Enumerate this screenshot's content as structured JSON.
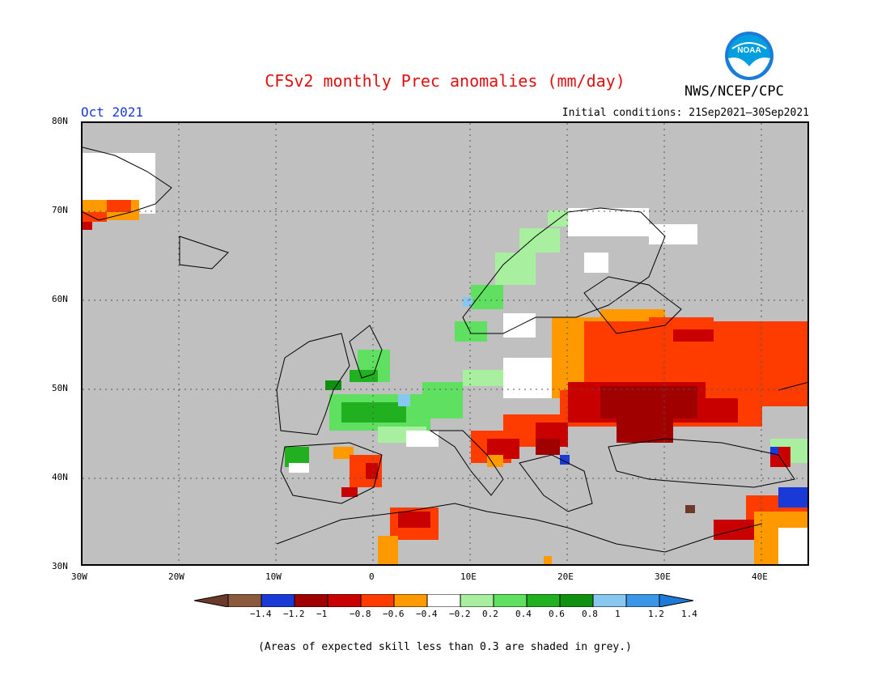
{
  "header": {
    "title": "CFSv2 monthly Prec anomalies (mm/day)",
    "month": "Oct 2021",
    "initial_conditions": "Initial conditions: 21Sep2021–30Sep2021",
    "agency": "NWS/NCEP/CPC",
    "logo_text": "NOAA"
  },
  "axes": {
    "lat_labels": [
      "80N",
      "70N",
      "60N",
      "50N",
      "40N",
      "30N"
    ],
    "lon_labels": [
      "30W",
      "20W",
      "10W",
      "0",
      "10E",
      "20E",
      "30E",
      "40E"
    ]
  },
  "colorbar": {
    "labels": [
      "−1.4",
      "−1.2",
      "−1",
      "−0.8",
      "−0.6",
      "−0.4",
      "−0.2",
      "0.2",
      "0.4",
      "0.6",
      "0.8",
      "1",
      "1.2",
      "1.4"
    ],
    "colors": [
      "#8b5a3c",
      "#1a3ad8",
      "#a00000",
      "#c80000",
      "#ff3c00",
      "#ff9900",
      "#ffffff",
      "#a8f0a0",
      "#60e060",
      "#20b020",
      "#109010",
      "#88c8f0",
      "#3c96e8"
    ],
    "end_low": "#6b3a2a",
    "end_high": "#1e7ad8"
  },
  "note": "(Areas of expected skill less than 0.3 are shaded in grey.)",
  "map": {
    "background": "#c0c0c0",
    "colors": {
      "darkred": "#a00000",
      "red": "#c80000",
      "orange_red": "#ff3c00",
      "orange": "#ff9900",
      "white": "#ffffff",
      "lightgreen": "#a8f0a0",
      "green": "#60e060",
      "midgreen": "#20b020",
      "darkgreen": "#109010",
      "lightblue": "#88c8f0",
      "blue": "#1a3ad8",
      "brown": "#6b3a2a"
    }
  }
}
